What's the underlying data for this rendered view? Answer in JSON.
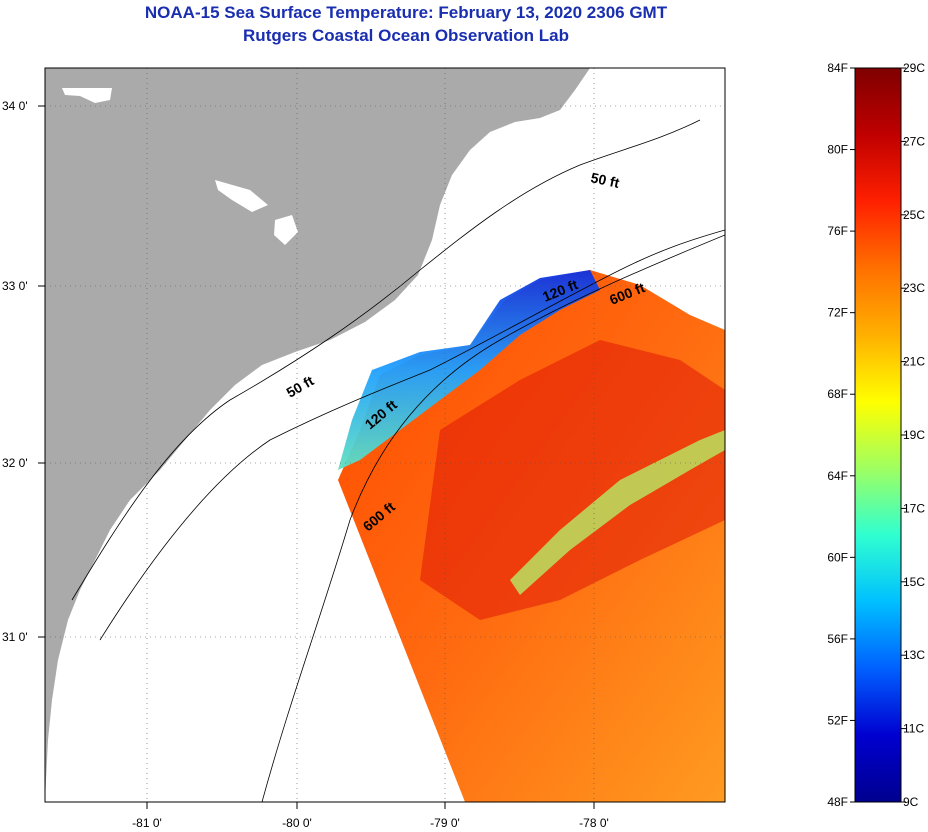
{
  "title": {
    "line1": "NOAA-15 Sea Surface Temperature:  February 13, 2020 2306 GMT",
    "line2": "Rutgers Coastal Ocean Observation Lab"
  },
  "map": {
    "lat_labels": [
      "34 0'",
      "33 0'",
      "32 0'",
      "31 0'"
    ],
    "lon_labels": [
      "-81 0'",
      "-80 0'",
      "-79 0'",
      "-78 0'"
    ],
    "contour_labels": [
      "50 ft",
      "120 ft",
      "600 ft",
      "50 ft",
      "120 ft",
      "600 ft"
    ],
    "colors": {
      "land": "#aaaaaa",
      "water_nodata": "#ffffff",
      "frame": "#000000"
    }
  },
  "colorbar": {
    "fahrenheit_labels": [
      "84F",
      "80F",
      "76F",
      "72F",
      "68F",
      "64F",
      "60F",
      "56F",
      "52F",
      "48F"
    ],
    "celsius_labels": [
      "29C",
      "27C",
      "25C",
      "23C",
      "21C",
      "19C",
      "17C",
      "15C",
      "13C",
      "11C",
      "9C"
    ],
    "gradient_colors": [
      "#7f0000",
      "#c00000",
      "#ff2000",
      "#ff7000",
      "#ffb000",
      "#ffff00",
      "#a0ff60",
      "#30ffd0",
      "#00c0ff",
      "#0060ff",
      "#0000d0",
      "#00008f"
    ]
  }
}
